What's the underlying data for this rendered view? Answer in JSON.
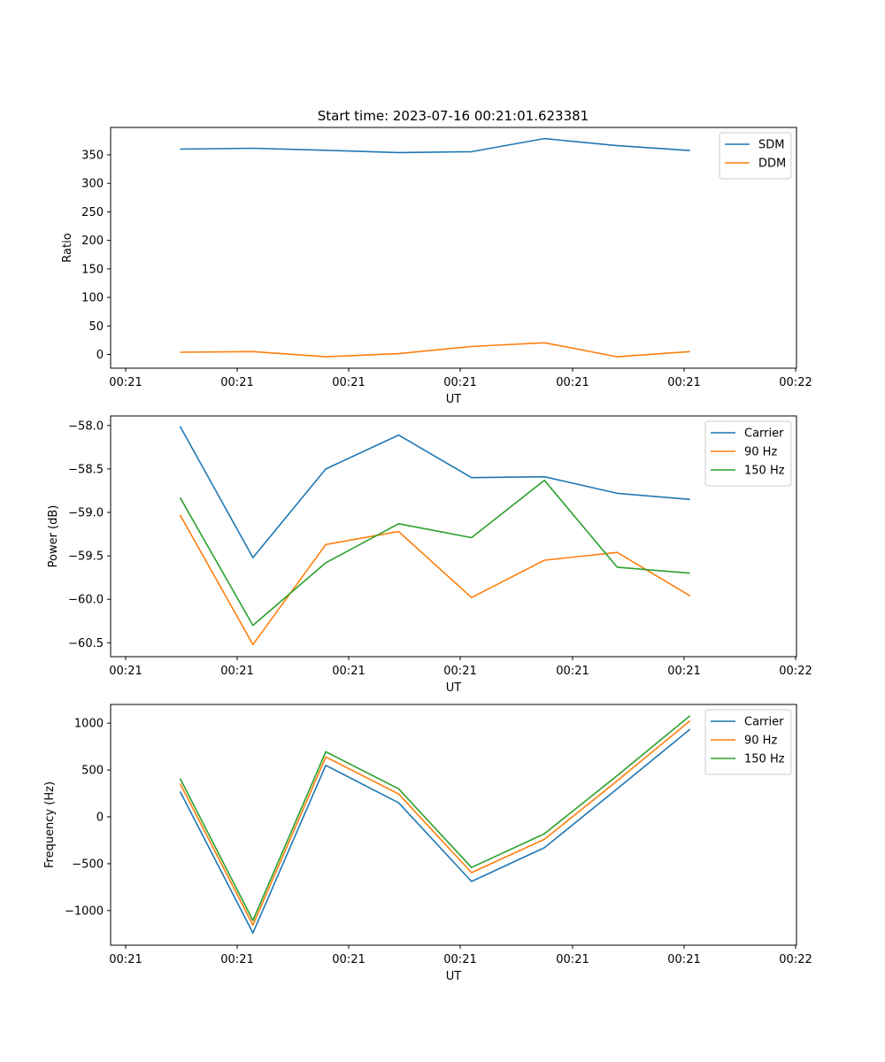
{
  "figure": {
    "title": "Start time: 2023-07-16 00:21:01.623381"
  },
  "chart_data": [
    {
      "type": "line",
      "title": "Start time: 2023-07-16 00:21:01.623381",
      "xlabel": "UT",
      "ylabel": "Ratio",
      "x_tick_labels": [
        "00:21",
        "00:21",
        "00:21",
        "00:21",
        "00:21",
        "00:21",
        "00:21"
      ],
      "x_tick_labels_extra": "00:22",
      "x": [
        1.5,
        2.15,
        2.8,
        3.45,
        4.1,
        4.75,
        5.4,
        6.05
      ],
      "xlim": [
        0.88,
        7.0
      ],
      "ylim": [
        -24,
        398
      ],
      "yticks": [
        0,
        50,
        100,
        150,
        200,
        250,
        300,
        350
      ],
      "legend_position": "top-right",
      "series": [
        {
          "name": "SDM",
          "color": "#1f77b4",
          "values": [
            360,
            361.5,
            358,
            354,
            355.5,
            378.5,
            366,
            357.5
          ]
        },
        {
          "name": "DDM",
          "color": "#ff7f0e",
          "values": [
            4,
            5,
            -4,
            1.5,
            14,
            20.5,
            -4,
            5
          ]
        }
      ]
    },
    {
      "type": "line",
      "title": "",
      "xlabel": "UT",
      "ylabel": "Power (dB)",
      "x_tick_labels": [
        "00:21",
        "00:21",
        "00:21",
        "00:21",
        "00:21",
        "00:21",
        "00:21"
      ],
      "x_tick_labels_extra": "00:22",
      "x": [
        1.5,
        2.15,
        2.8,
        3.45,
        4.1,
        4.75,
        5.4,
        6.05
      ],
      "xlim": [
        0.88,
        7.0
      ],
      "ylim": [
        -60.66,
        -57.89
      ],
      "yticks": [
        -58.0,
        -58.5,
        -59.0,
        -59.5,
        -60.0,
        -60.5
      ],
      "ytick_labels": [
        "−58.0",
        "−58.5",
        "−59.0",
        "−59.5",
        "−60.0",
        "−60.5"
      ],
      "legend_position": "top-right",
      "series": [
        {
          "name": "Carrier",
          "color": "#1f77b4",
          "values": [
            -58.01,
            -59.52,
            -58.5,
            -58.11,
            -58.6,
            -58.59,
            -58.78,
            -58.85
          ]
        },
        {
          "name": "90 Hz",
          "color": "#ff7f0e",
          "values": [
            -59.03,
            -60.52,
            -59.37,
            -59.22,
            -59.98,
            -59.55,
            -59.46,
            -59.96
          ]
        },
        {
          "name": "150 Hz",
          "color": "#2ca02c",
          "values": [
            -58.83,
            -60.3,
            -59.58,
            -59.13,
            -59.29,
            -58.63,
            -59.63,
            -59.7
          ]
        }
      ]
    },
    {
      "type": "line",
      "title": "",
      "xlabel": "UT",
      "ylabel": "Frequency (Hz)",
      "x_tick_labels": [
        "00:21",
        "00:21",
        "00:21",
        "00:21",
        "00:21",
        "00:21",
        "00:21"
      ],
      "x_tick_labels_extra": "00:22",
      "x": [
        1.5,
        2.15,
        2.8,
        3.45,
        4.1,
        4.75,
        5.4,
        6.05
      ],
      "xlim": [
        0.88,
        7.0
      ],
      "ylim": [
        -1370,
        1200
      ],
      "yticks": [
        1000,
        500,
        0,
        -500,
        -1000
      ],
      "ytick_labels": [
        "1000",
        "500",
        "0",
        "−500",
        "−1000"
      ],
      "legend_position": "top-right",
      "series": [
        {
          "name": "Carrier",
          "color": "#1f77b4",
          "values": [
            270,
            -1240,
            550,
            150,
            -690,
            -330,
            300,
            935
          ]
        },
        {
          "name": "90 Hz",
          "color": "#ff7f0e",
          "values": [
            355,
            -1155,
            640,
            245,
            -595,
            -240,
            385,
            1025
          ]
        },
        {
          "name": "150 Hz",
          "color": "#2ca02c",
          "values": [
            410,
            -1105,
            695,
            300,
            -540,
            -180,
            440,
            1080
          ]
        }
      ]
    }
  ]
}
